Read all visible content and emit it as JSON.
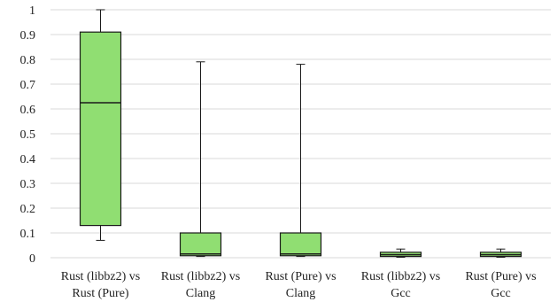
{
  "chart_data": {
    "type": "box",
    "title": "",
    "xlabel": "",
    "ylabel": "",
    "ylim": [
      0,
      1
    ],
    "yticks": [
      "0",
      "0.1",
      "0.2",
      "0.3",
      "0.4",
      "0.5",
      "0.6",
      "0.7",
      "0.8",
      "0.9",
      "1"
    ],
    "grid": true,
    "box_color": "#90de72",
    "box_stroke": "#1a1a1a",
    "categories": [
      {
        "line1": "Rust (libbz2) vs",
        "line2": "Rust (Pure)"
      },
      {
        "line1": "Rust (libbz2) vs",
        "line2": "Clang"
      },
      {
        "line1": "Rust (Pure) vs",
        "line2": "Clang"
      },
      {
        "line1": "Rust (libbz2) vs",
        "line2": "Gcc"
      },
      {
        "line1": "Rust (Pure) vs",
        "line2": "Gcc"
      }
    ],
    "boxes": [
      {
        "min": 0.07,
        "q1": 0.13,
        "median": 0.625,
        "q3": 0.91,
        "max": 1.0
      },
      {
        "min": 0.005,
        "q1": 0.008,
        "median": 0.015,
        "q3": 0.1,
        "max": 0.79
      },
      {
        "min": 0.005,
        "q1": 0.008,
        "median": 0.015,
        "q3": 0.1,
        "max": 0.78
      },
      {
        "min": 0.002,
        "q1": 0.005,
        "median": 0.012,
        "q3": 0.022,
        "max": 0.035
      },
      {
        "min": 0.002,
        "q1": 0.005,
        "median": 0.012,
        "q3": 0.022,
        "max": 0.035
      }
    ]
  }
}
